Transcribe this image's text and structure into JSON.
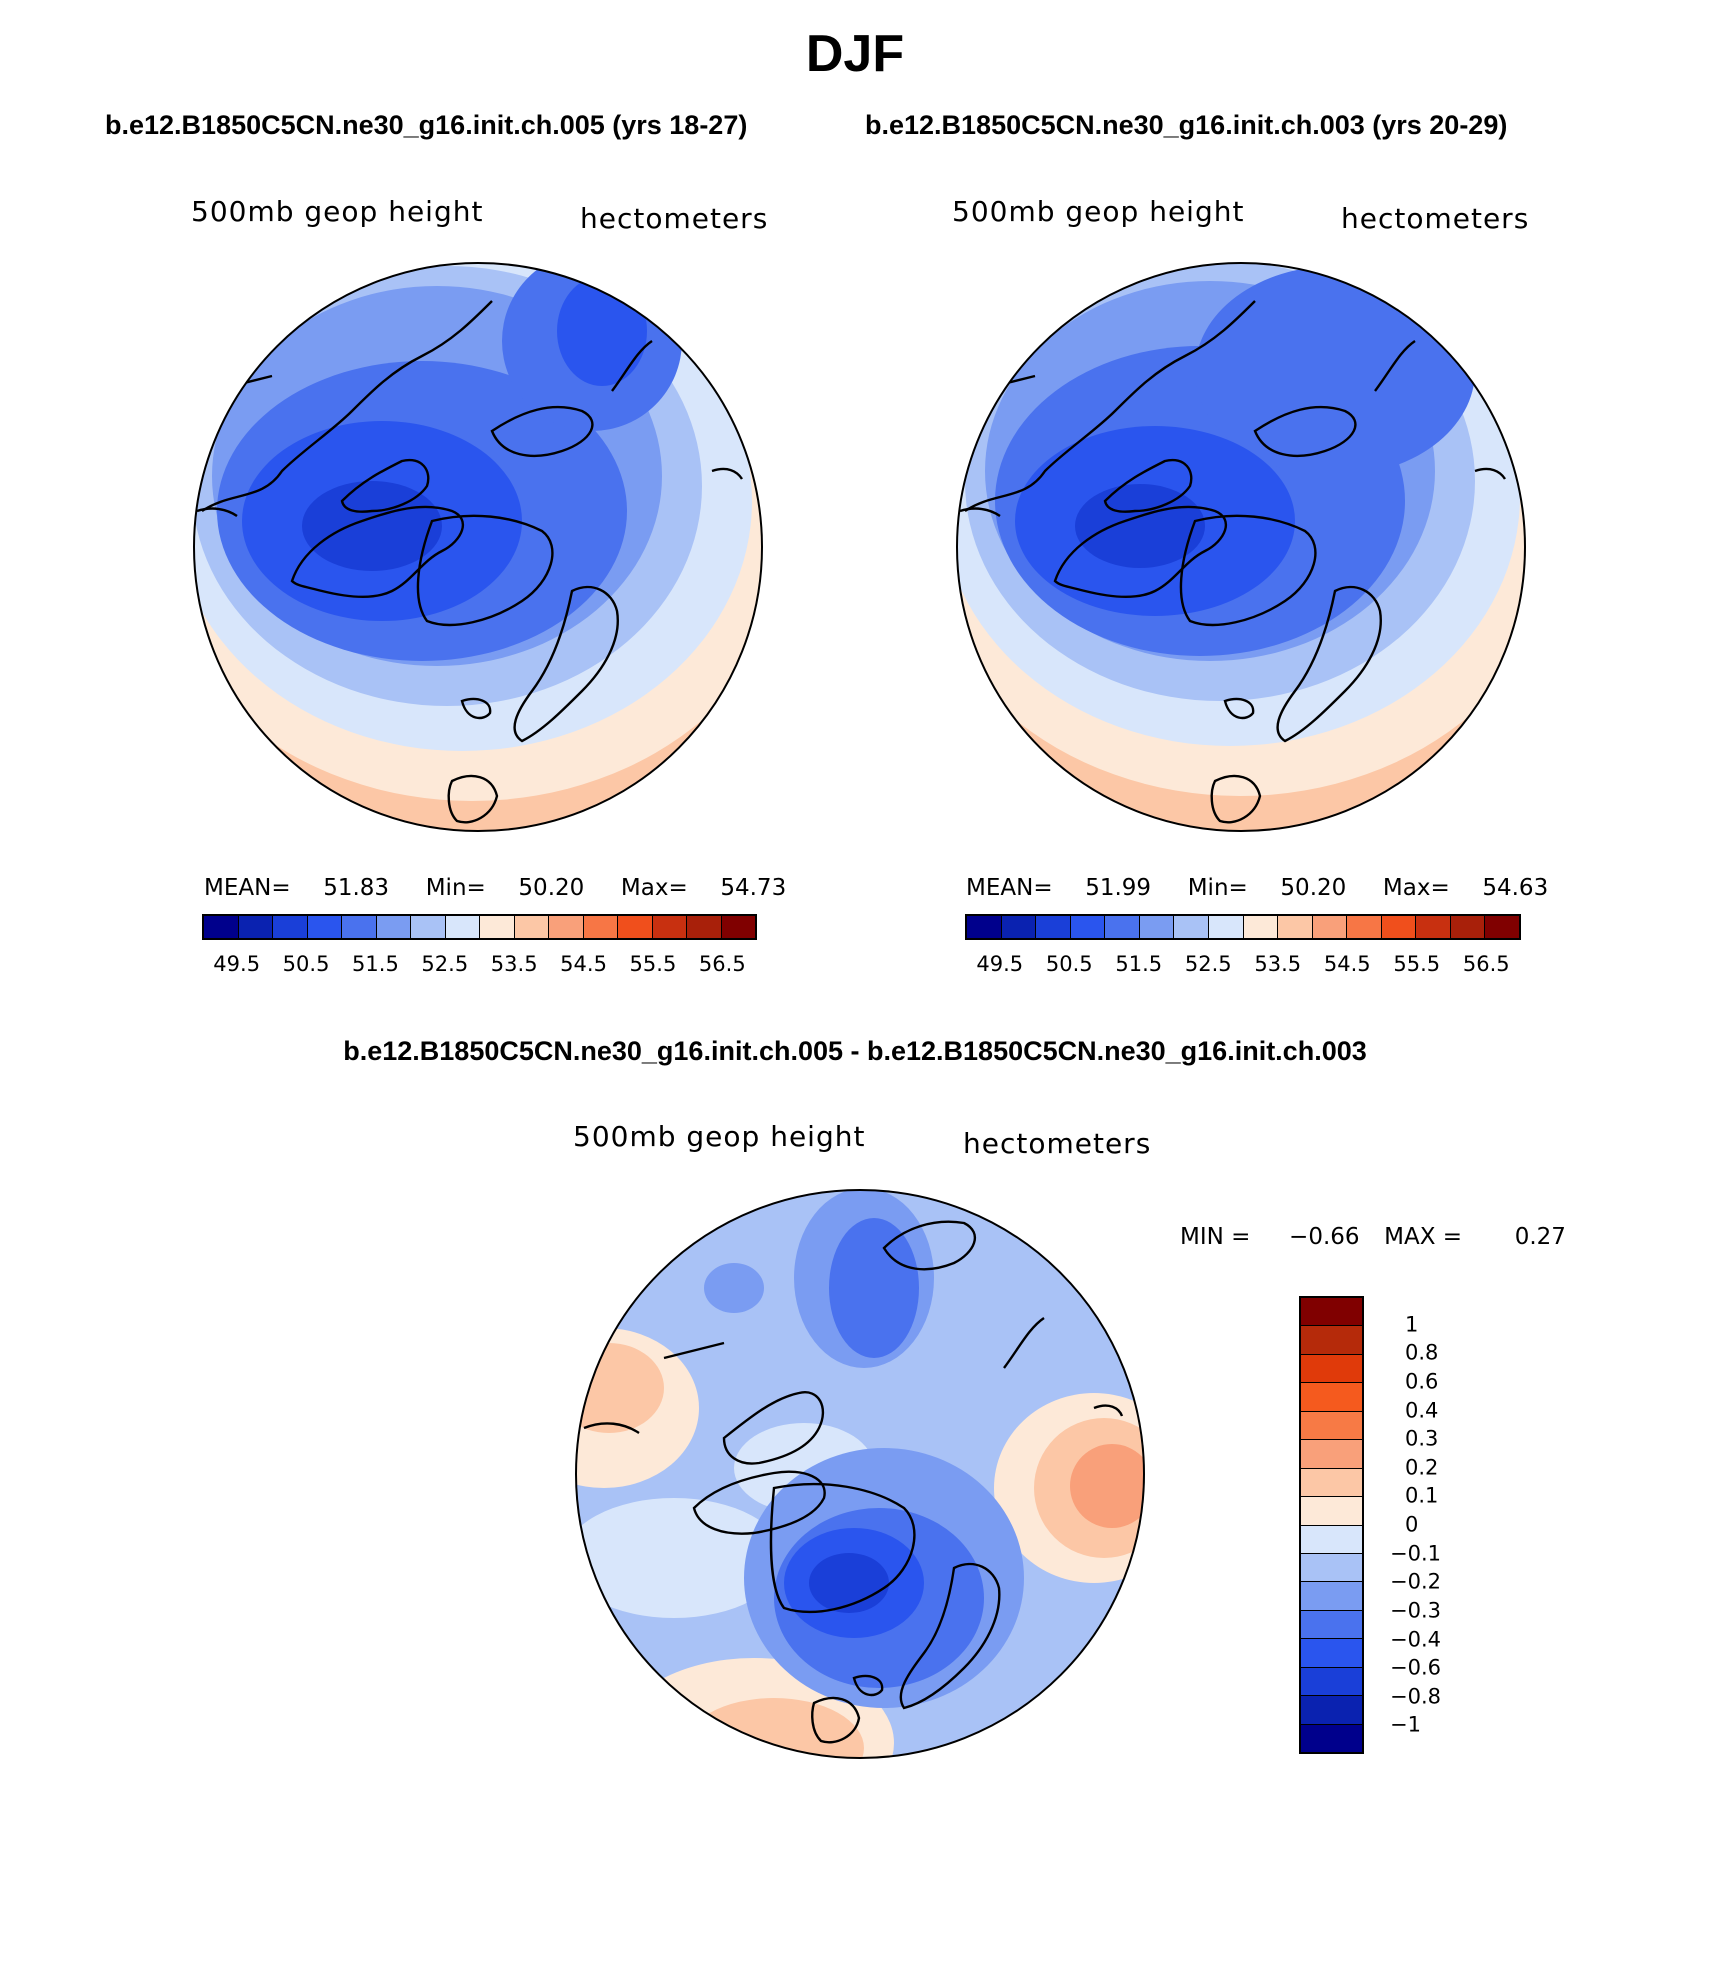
{
  "title": "DJF",
  "panels": [
    {
      "subtitle": "b.e12.B1850C5CN.ne30_g16.init.ch.005 (yrs 18-27)",
      "variable": "500mb geop height",
      "units": "hectometers",
      "stats": {
        "mean_label": "MEAN=",
        "mean": "51.83",
        "min_label": "Min=",
        "min": "50.20",
        "max_label": "Max=",
        "max": "54.73"
      },
      "colorbar_ticks": [
        "49.5",
        "50.5",
        "51.5",
        "52.5",
        "53.5",
        "54.5",
        "55.5",
        "56.5"
      ]
    },
    {
      "subtitle": "b.e12.B1850C5CN.ne30_g16.init.ch.003 (yrs 20-29)",
      "variable": "500mb geop height",
      "units": "hectometers",
      "stats": {
        "mean_label": "MEAN=",
        "mean": "51.99",
        "min_label": "Min=",
        "min": "50.20",
        "max_label": "Max=",
        "max": "54.63"
      },
      "colorbar_ticks": [
        "49.5",
        "50.5",
        "51.5",
        "52.5",
        "53.5",
        "54.5",
        "55.5",
        "56.5"
      ]
    }
  ],
  "difference": {
    "subtitle": "b.e12.B1850C5CN.ne30_g16.init.ch.005 - b.e12.B1850C5CN.ne30_g16.init.ch.003",
    "variable": "500mb geop height",
    "units": "hectometers",
    "stats": {
      "min_label": "MIN =",
      "min": "−0.66",
      "max_label": "MAX =",
      "max": "0.27"
    },
    "colorbar_labels": [
      "1",
      "0.8",
      "0.6",
      "0.4",
      "0.3",
      "0.2",
      "0.1",
      "0",
      "−0.1",
      "−0.2",
      "−0.3",
      "−0.4",
      "−0.6",
      "−0.8",
      "−1"
    ]
  },
  "colors": {
    "mean_scale": [
      "#00008c",
      "#0a22b0",
      "#1a3fd8",
      "#2a55ee",
      "#4a72ee",
      "#7a9cf2",
      "#a9c2f6",
      "#d8e6fb",
      "#fde9d8",
      "#fcc7a6",
      "#f9a07a",
      "#f77645",
      "#f04f1c",
      "#c83010",
      "#a8200a",
      "#800000"
    ],
    "diff_scale": [
      "#800000",
      "#b52a0a",
      "#e03a0a",
      "#f55a1e",
      "#f77a45",
      "#f9a07a",
      "#fcc7a6",
      "#fde9d8",
      "#d8e6fb",
      "#a9c2f6",
      "#7a9cf2",
      "#4a72ee",
      "#2a55ee",
      "#1a3fd8",
      "#0a22b0",
      "#00008c"
    ]
  }
}
